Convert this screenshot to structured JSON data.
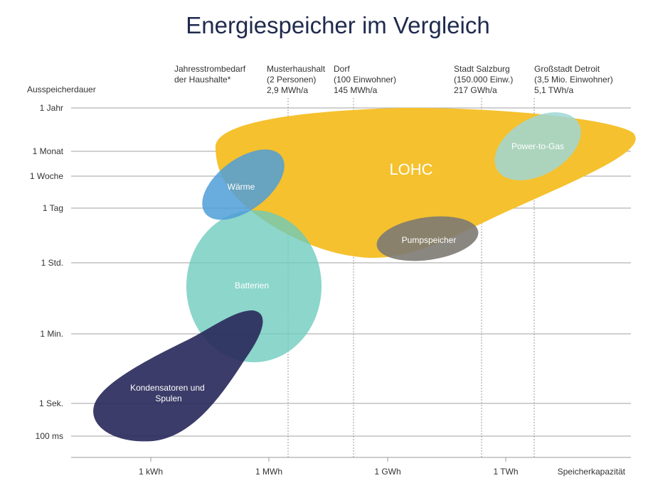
{
  "chart_data": {
    "type": "bubble-region",
    "title": "Energiespeicher im Vergleich",
    "xlabel": "Speicherkapazität",
    "ylabel": "Ausspeicherdauer",
    "x_ticks": [
      "1 kWh",
      "1 MWh",
      "1 GWh",
      "1 TWh"
    ],
    "y_ticks": [
      "1 Jahr",
      "1 Monat",
      "1 Woche",
      "1 Tag",
      "1 Std.",
      "1 Min.",
      "1 Sek.",
      "100 ms"
    ],
    "references": [
      {
        "id": "haushalte",
        "lines": [
          "Jahresstrombedarf",
          "der Haushalte*"
        ]
      },
      {
        "id": "musterhaushalt",
        "lines": [
          "Musterhaushalt",
          "(2 Personen)",
          "2,9 MWh/a"
        ]
      },
      {
        "id": "dorf",
        "lines": [
          "Dorf",
          "(100 Einwohner)",
          "145 MWh/a"
        ]
      },
      {
        "id": "salzburg",
        "lines": [
          "Stadt Salzburg",
          "(150.000 Einw.)",
          "217 GWh/a"
        ]
      },
      {
        "id": "detroit",
        "lines": [
          "Großstadt Detroit",
          "(3,5 Mio. Einwohner)",
          "5,1 TWh/a"
        ]
      }
    ],
    "regions": [
      {
        "id": "lohc",
        "label": "LOHC",
        "color": "#f5c12e"
      },
      {
        "id": "waerme",
        "label": "Wärme",
        "color": "#4f9ed8"
      },
      {
        "id": "batterien",
        "label": "Batterien",
        "color": "#6ccbbd"
      },
      {
        "id": "kondensatoren",
        "label": "Kondensatoren und Spulen",
        "lines": [
          "Kondensatoren und",
          "Spulen"
        ],
        "color": "#2a2b5c"
      },
      {
        "id": "pumpspeicher",
        "label": "Pumpspeicher",
        "color": "#7d7a73"
      },
      {
        "id": "power_to_gas",
        "label": "Power-to-Gas",
        "color": "#9fd7d6"
      }
    ]
  }
}
